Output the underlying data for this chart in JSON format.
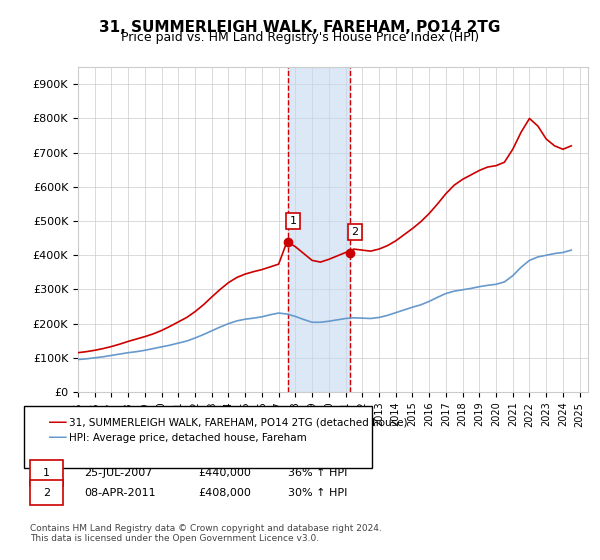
{
  "title": "31, SUMMERLEIGH WALK, FAREHAM, PO14 2TG",
  "subtitle": "Price paid vs. HM Land Registry's House Price Index (HPI)",
  "ylabel_ticks": [
    "£0",
    "£100K",
    "£200K",
    "£300K",
    "£400K",
    "£500K",
    "£600K",
    "£700K",
    "£800K",
    "£900K"
  ],
  "ytick_vals": [
    0,
    100000,
    200000,
    300000,
    400000,
    500000,
    600000,
    700000,
    800000,
    900000
  ],
  "ylim": [
    0,
    950000
  ],
  "xlim_start": 1995.0,
  "xlim_end": 2025.5,
  "sale1_x": 2007.56,
  "sale1_y": 440000,
  "sale2_x": 2011.27,
  "sale2_y": 408000,
  "sale1_label": "1",
  "sale2_label": "2",
  "shade_color": "#c6d9f0",
  "sale_dot_color": "#cc0000",
  "line_property_color": "#cc0000",
  "line_hpi_color": "#6699cc",
  "vline_color": "#cc0000",
  "legend_property": "31, SUMMERLEIGH WALK, FAREHAM, PO14 2TG (detached house)",
  "legend_hpi": "HPI: Average price, detached house, Fareham",
  "table_row1": [
    "1",
    "25-JUL-2007",
    "£440,000",
    "36% ↑ HPI"
  ],
  "table_row2": [
    "2",
    "08-APR-2011",
    "£408,000",
    "30% ↑ HPI"
  ],
  "footnote": "Contains HM Land Registry data © Crown copyright and database right 2024.\nThis data is licensed under the Open Government Licence v3.0.",
  "hpi_x": [
    1995,
    1995.5,
    1996,
    1996.5,
    1997,
    1997.5,
    1998,
    1998.5,
    1999,
    1999.5,
    2000,
    2000.5,
    2001,
    2001.5,
    2002,
    2002.5,
    2003,
    2003.5,
    2004,
    2004.5,
    2005,
    2005.5,
    2006,
    2006.5,
    2007,
    2007.5,
    2008,
    2008.5,
    2009,
    2009.5,
    2010,
    2010.5,
    2011,
    2011.5,
    2012,
    2012.5,
    2013,
    2013.5,
    2014,
    2014.5,
    2015,
    2015.5,
    2016,
    2016.5,
    2017,
    2017.5,
    2018,
    2018.5,
    2019,
    2019.5,
    2020,
    2020.5,
    2021,
    2021.5,
    2022,
    2022.5,
    2023,
    2023.5,
    2024,
    2024.5
  ],
  "hpi_y": [
    95000,
    97000,
    100000,
    103000,
    107000,
    111000,
    115000,
    118000,
    122000,
    127000,
    132000,
    137000,
    143000,
    149000,
    158000,
    168000,
    179000,
    190000,
    200000,
    208000,
    213000,
    216000,
    220000,
    226000,
    231000,
    228000,
    221000,
    212000,
    204000,
    204000,
    207000,
    211000,
    215000,
    217000,
    216000,
    215000,
    218000,
    224000,
    232000,
    240000,
    248000,
    255000,
    265000,
    277000,
    288000,
    295000,
    299000,
    303000,
    308000,
    312000,
    315000,
    322000,
    340000,
    365000,
    385000,
    395000,
    400000,
    405000,
    408000,
    415000
  ],
  "prop_x": [
    1995,
    1995.5,
    1996,
    1996.5,
    1997,
    1997.5,
    1998,
    1998.5,
    1999,
    1999.5,
    2000,
    2000.5,
    2001,
    2001.5,
    2002,
    2002.5,
    2003,
    2003.5,
    2004,
    2004.5,
    2005,
    2005.5,
    2006,
    2006.5,
    2007,
    2007.5,
    2008,
    2008.5,
    2009,
    2009.5,
    2010,
    2010.5,
    2011,
    2011.5,
    2012,
    2012.5,
    2013,
    2013.5,
    2014,
    2014.5,
    2015,
    2015.5,
    2016,
    2016.5,
    2017,
    2017.5,
    2018,
    2018.5,
    2019,
    2019.5,
    2020,
    2020.5,
    2021,
    2021.5,
    2022,
    2022.5,
    2023,
    2023.5,
    2024,
    2024.5
  ],
  "prop_y": [
    115000,
    118000,
    122000,
    127000,
    133000,
    140000,
    148000,
    155000,
    162000,
    170000,
    180000,
    192000,
    205000,
    218000,
    235000,
    255000,
    278000,
    300000,
    320000,
    335000,
    345000,
    352000,
    358000,
    366000,
    374000,
    440000,
    425000,
    405000,
    385000,
    380000,
    388000,
    398000,
    408000,
    418000,
    415000,
    412000,
    418000,
    428000,
    442000,
    460000,
    478000,
    498000,
    522000,
    550000,
    580000,
    605000,
    622000,
    635000,
    648000,
    658000,
    662000,
    672000,
    710000,
    760000,
    800000,
    778000,
    740000,
    720000,
    710000,
    720000
  ]
}
